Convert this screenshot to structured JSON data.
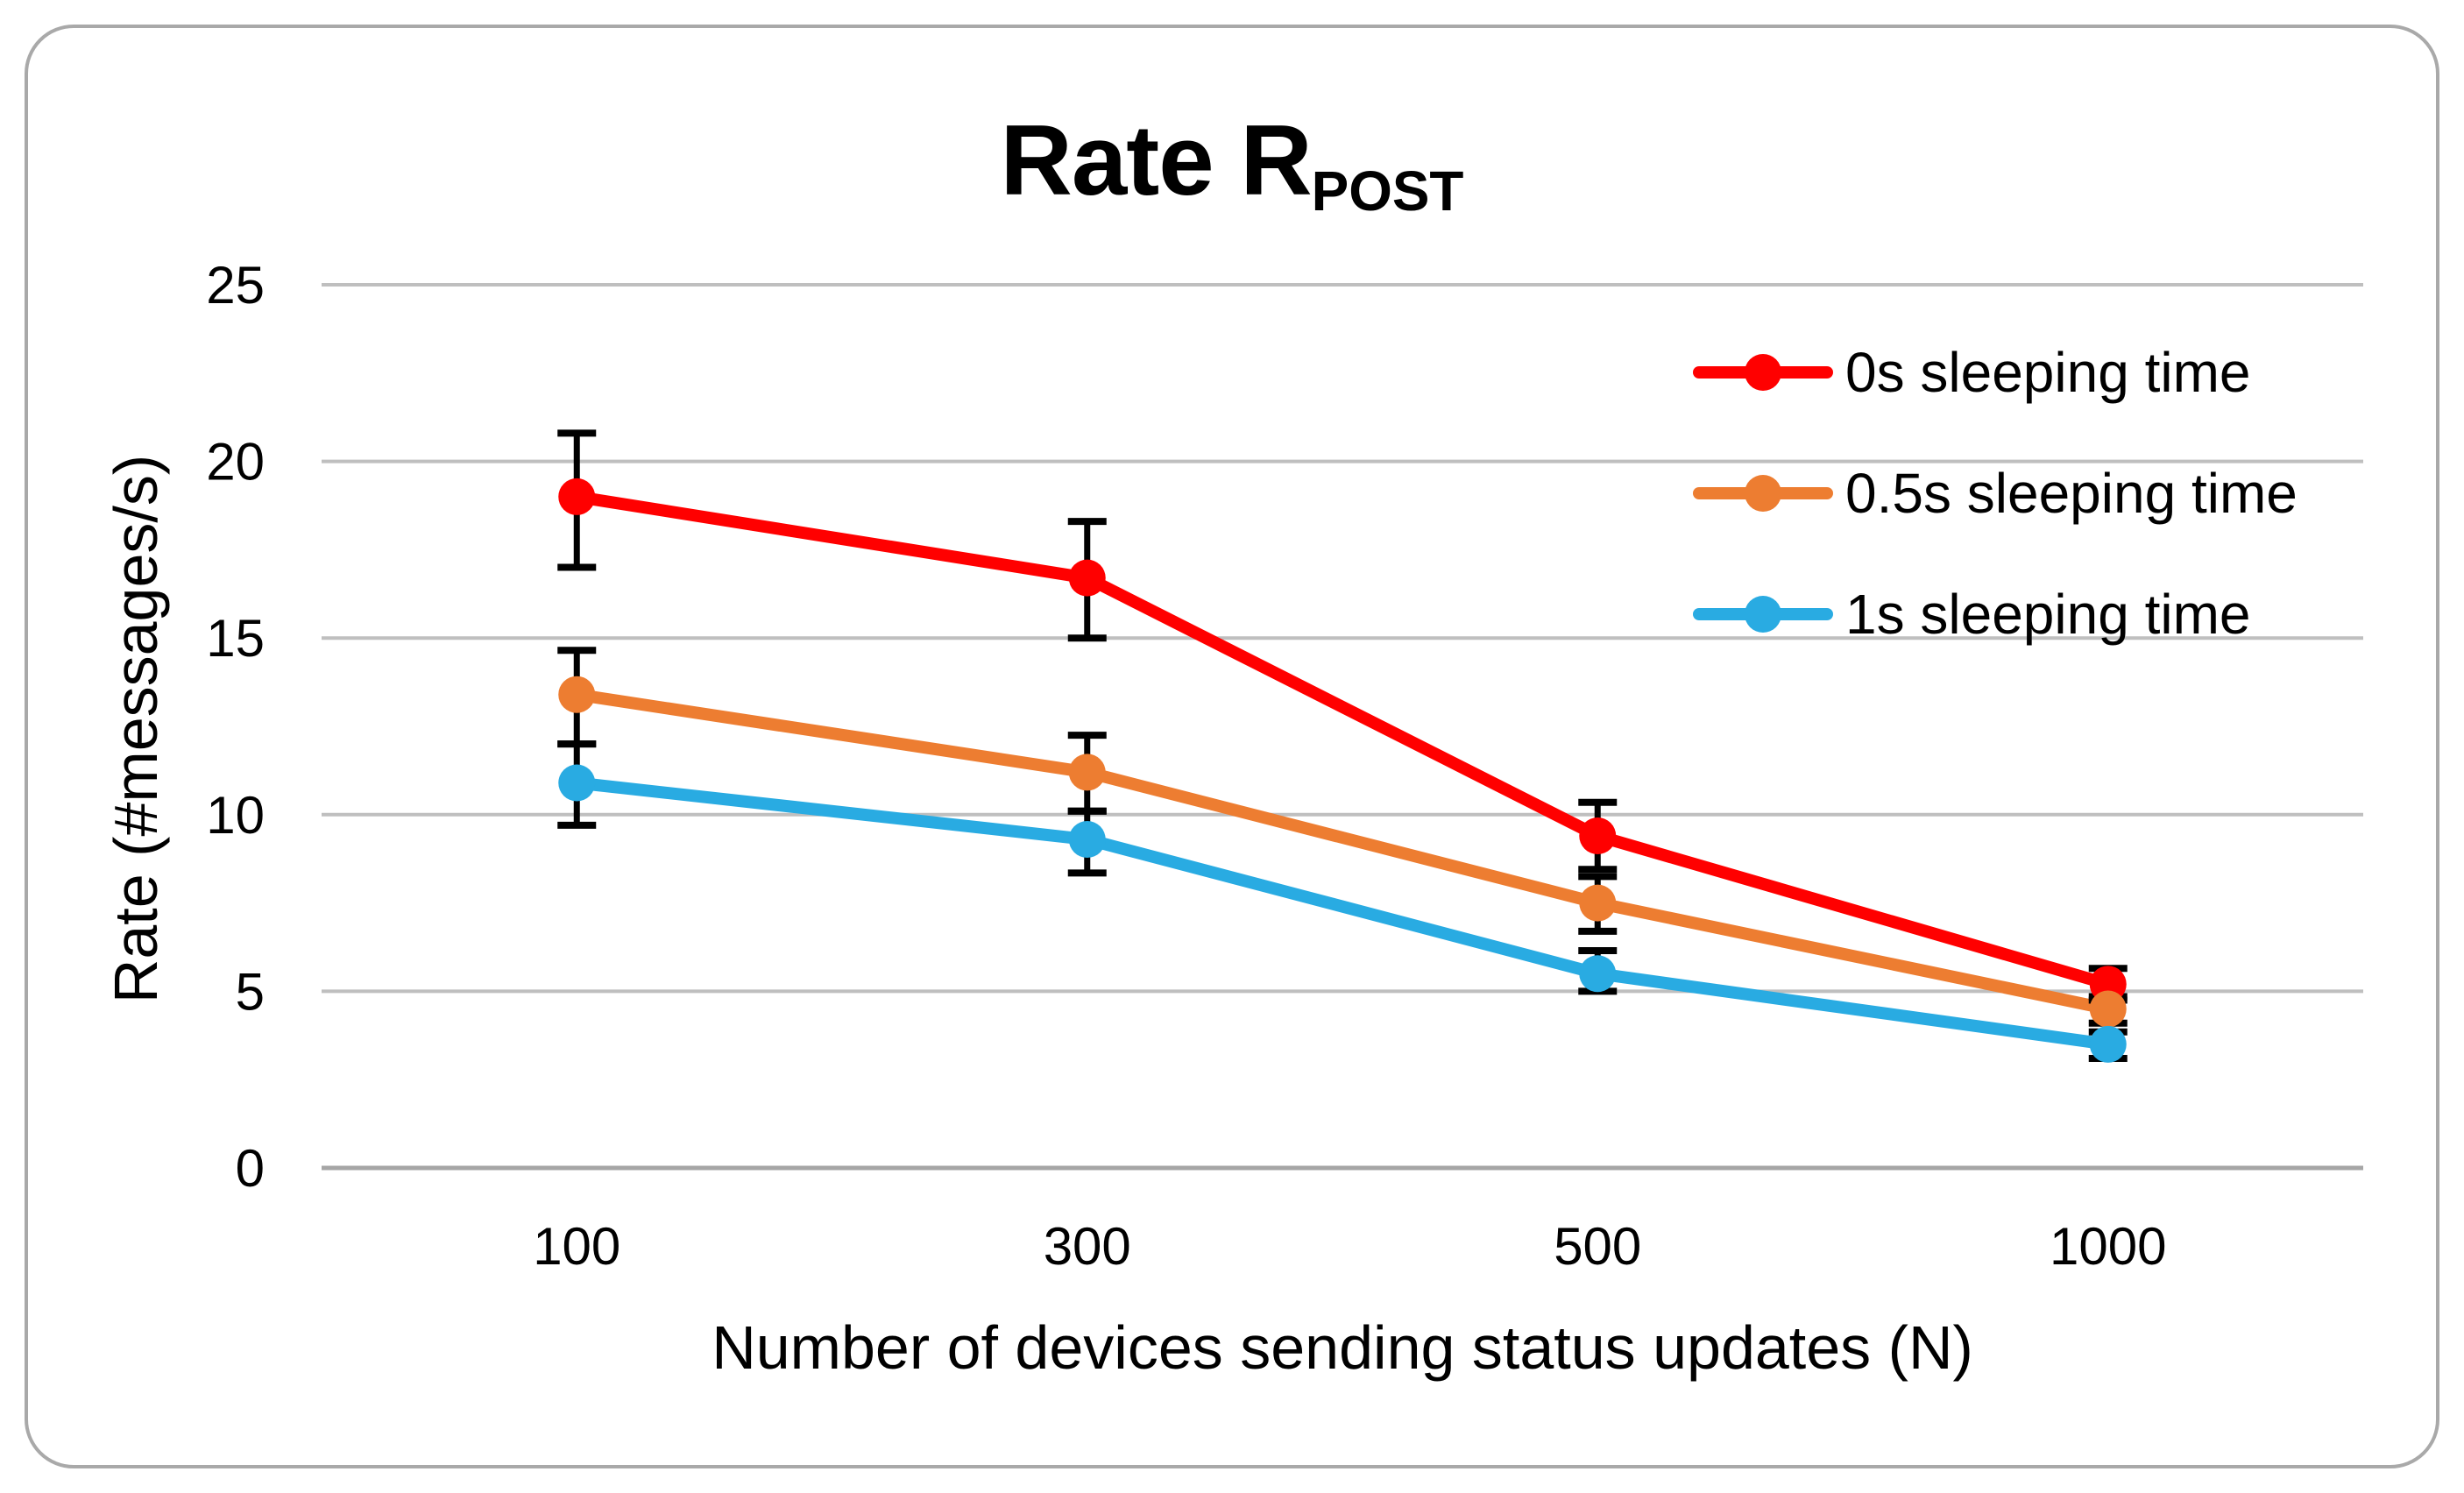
{
  "chart_data": {
    "type": "line",
    "title": "Rate R",
    "title_subscript": "POST",
    "xlabel": "Number of devices sending status updates (N)",
    "ylabel": "Rate (#messages/s)",
    "categories": [
      "100",
      "300",
      "500",
      "1000"
    ],
    "yticks": [
      0,
      5,
      10,
      15,
      20,
      25
    ],
    "ylim": [
      0,
      25
    ],
    "grid": true,
    "legend_position": "inside-top-right",
    "colors": {
      "gridline": "#BFBFBF",
      "axis_line": "#A6A6A6",
      "error_bar": "#000000",
      "text": "#000000",
      "frame_border": "#A9A9A9"
    },
    "series": [
      {
        "name": "0s sleeping time",
        "color": "#FF0000",
        "values": [
          19.0,
          16.7,
          9.4,
          5.2
        ],
        "err_minus": [
          2.0,
          1.7,
          0.95,
          0.45
        ],
        "err_plus": [
          1.8,
          1.6,
          0.95,
          0.45
        ]
      },
      {
        "name": "0.5s sleeping time",
        "color": "#ED7D31",
        "values": [
          13.4,
          11.2,
          7.5,
          4.5
        ],
        "err_minus": [
          1.4,
          1.1,
          0.8,
          0.4
        ],
        "err_plus": [
          1.25,
          1.05,
          0.75,
          0.35
        ]
      },
      {
        "name": "1s sleeping time",
        "color": "#29ABE2",
        "values": [
          10.9,
          9.3,
          5.5,
          3.5
        ],
        "err_minus": [
          1.2,
          0.95,
          0.5,
          0.4
        ],
        "err_plus": [
          1.1,
          0.8,
          0.65,
          0.35
        ]
      }
    ]
  }
}
